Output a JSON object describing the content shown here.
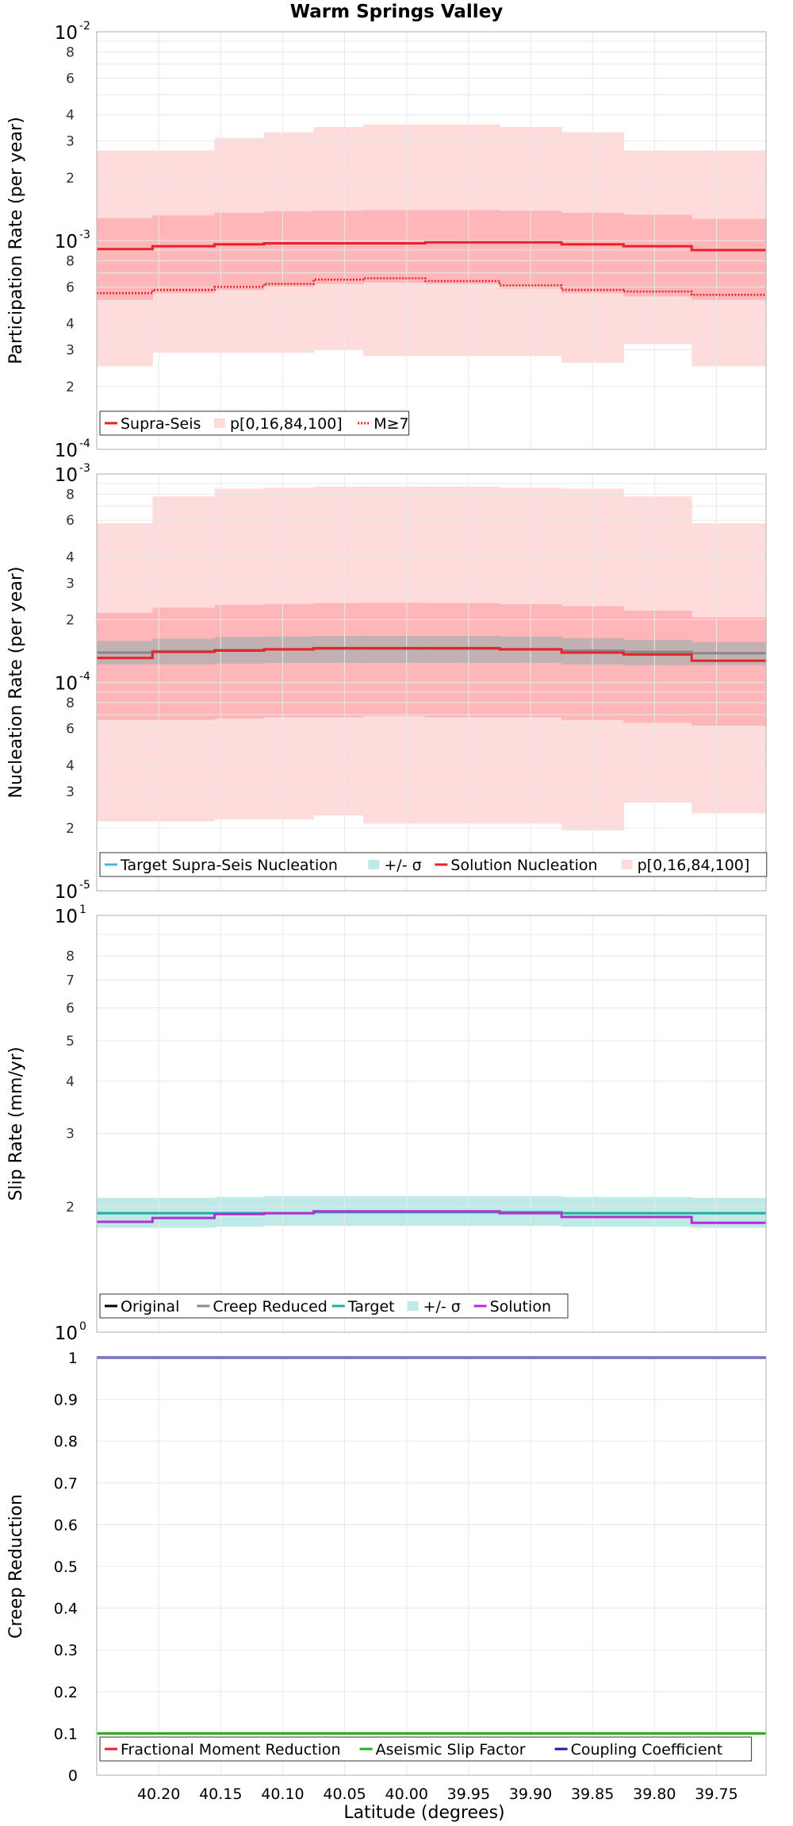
{
  "figure_title": "Warm Springs Valley",
  "x_axis": {
    "label": "Latitude (degrees)",
    "xlim": [
      40.25,
      39.71
    ],
    "ticks": [
      40.2,
      40.15,
      40.1,
      40.05,
      40.0,
      39.95,
      39.9,
      39.85,
      39.8,
      39.75
    ],
    "tick_labels": [
      "40.20",
      "40.15",
      "40.10",
      "40.05",
      "40.00",
      "39.95",
      "39.90",
      "39.85",
      "39.80",
      "39.75"
    ]
  },
  "sections": [
    40.25,
    40.205,
    40.155,
    40.115,
    40.075,
    40.035,
    39.985,
    39.925,
    39.875,
    39.825,
    39.77,
    39.71
  ],
  "colors": {
    "red": "#e8222b",
    "pink_outer": "#ffdcdc",
    "pink_inner": "#ffb6b8",
    "grey_band": "#b7b0b0",
    "grey_line": "#888888",
    "teal_band": "#bfeae8",
    "teal_line": "#1aaea4",
    "teal_target": "#46b8d3",
    "purple": "#b62dd6",
    "green": "#22b022",
    "navy": "#1a1a9c",
    "black": "#000000",
    "grid": "#e8e8e8",
    "frame": "#bbbbbb"
  },
  "chart_data": [
    {
      "type": "line",
      "id": "participation",
      "title": "Warm Springs Valley",
      "ylabel": "Participation Rate (per year)",
      "yscale": "log",
      "ylim": [
        0.0001,
        0.01
      ],
      "y_decade_labels": [
        {
          "base": "10",
          "exp": "-4"
        },
        {
          "base": "10",
          "exp": "-3"
        },
        {
          "base": "10",
          "exp": "-2"
        }
      ],
      "y_minor_labels": [
        {
          "v": 0.0002,
          "t": "2"
        },
        {
          "v": 0.0003,
          "t": "3"
        },
        {
          "v": 0.0004,
          "t": "4"
        },
        {
          "v": 0.0006,
          "t": "6"
        },
        {
          "v": 0.0008,
          "t": "8"
        },
        {
          "v": 0.002,
          "t": "2"
        },
        {
          "v": 0.003,
          "t": "3"
        },
        {
          "v": 0.004,
          "t": "4"
        },
        {
          "v": 0.006,
          "t": "6"
        },
        {
          "v": 0.008,
          "t": "8"
        }
      ],
      "bands": [
        {
          "name": "p[0,16,84,100] outer",
          "color": "#ffdcdc",
          "lower": [
            0.00025,
            0.00029,
            0.00029,
            0.00029,
            0.0003,
            0.00028,
            0.00028,
            0.00028,
            0.00026,
            0.00032,
            0.00025
          ],
          "upper": [
            0.0027,
            0.0027,
            0.0031,
            0.0033,
            0.0035,
            0.0036,
            0.0036,
            0.0035,
            0.0033,
            0.0027,
            0.0027
          ]
        },
        {
          "name": "p[0,16,84,100] inner",
          "color": "#ffb6b8",
          "lower": [
            0.00052,
            0.00056,
            0.00058,
            0.0006,
            0.00062,
            0.00063,
            0.00062,
            0.00059,
            0.00056,
            0.00054,
            0.00052
          ],
          "upper": [
            0.00128,
            0.00132,
            0.00136,
            0.00138,
            0.00139,
            0.0014,
            0.0014,
            0.00139,
            0.00136,
            0.00133,
            0.00127
          ]
        }
      ],
      "series": [
        {
          "name": "Supra-Seis",
          "color": "#e8222b",
          "dash": "none",
          "values": [
            0.00091,
            0.00094,
            0.00096,
            0.00097,
            0.00097,
            0.00097,
            0.00098,
            0.00098,
            0.00096,
            0.00094,
            0.0009
          ]
        },
        {
          "name": "M≥7",
          "color": "#e8222b",
          "dash": "2 2",
          "values": [
            0.00056,
            0.00058,
            0.0006,
            0.00062,
            0.00065,
            0.00066,
            0.00064,
            0.00061,
            0.00058,
            0.00057,
            0.00055
          ]
        }
      ],
      "legend": [
        {
          "label": "Supra-Seis",
          "kind": "line",
          "color": "#e8222b"
        },
        {
          "label": "p[0,16,84,100]",
          "kind": "box",
          "color": "#ffdcdc"
        },
        {
          "label": "M≥7",
          "kind": "dotted",
          "color": "#e8222b"
        }
      ]
    },
    {
      "type": "line",
      "id": "nucleation",
      "ylabel": "Nucleation Rate (per year)",
      "yscale": "log",
      "ylim": [
        1e-05,
        0.001
      ],
      "y_decade_labels": [
        {
          "base": "10",
          "exp": "-5"
        },
        {
          "base": "10",
          "exp": "-4"
        },
        {
          "base": "10",
          "exp": "-3"
        }
      ],
      "y_minor_labels": [
        {
          "v": 2e-05,
          "t": "2"
        },
        {
          "v": 3e-05,
          "t": "3"
        },
        {
          "v": 4e-05,
          "t": "4"
        },
        {
          "v": 6e-05,
          "t": "6"
        },
        {
          "v": 8e-05,
          "t": "8"
        },
        {
          "v": 0.0002,
          "t": "2"
        },
        {
          "v": 0.0003,
          "t": "3"
        },
        {
          "v": 0.0004,
          "t": "4"
        },
        {
          "v": 0.0006,
          "t": "6"
        },
        {
          "v": 0.0008,
          "t": "8"
        }
      ],
      "bands": [
        {
          "name": "p[0,16,84,100] outer",
          "color": "#ffdcdc",
          "lower": [
            2.15e-05,
            2.15e-05,
            2.2e-05,
            2.2e-05,
            2.3e-05,
            2.1e-05,
            2.1e-05,
            2.1e-05,
            1.95e-05,
            2.65e-05,
            2.35e-05
          ],
          "upper": [
            0.00058,
            0.00078,
            0.00085,
            0.00086,
            0.00087,
            0.00087,
            0.00087,
            0.00086,
            0.00085,
            0.00078,
            0.00058
          ]
        },
        {
          "name": "p[0,16,84,100] inner",
          "color": "#ffb6b8",
          "lower": [
            6.6e-05,
            6.6e-05,
            6.7e-05,
            6.8e-05,
            6.8e-05,
            6.9e-05,
            6.8e-05,
            6.8e-05,
            6.6e-05,
            6.4e-05,
            6.2e-05
          ],
          "upper": [
            0.000215,
            0.000228,
            0.000235,
            0.000238,
            0.00024,
            0.000241,
            0.00024,
            0.000237,
            0.000232,
            0.000221,
            0.000205
          ]
        },
        {
          "name": "+/- σ",
          "color": "#b7b0b0",
          "lower": [
            0.000122,
            0.000122,
            0.000123,
            0.000124,
            0.000124,
            0.000124,
            0.000124,
            0.000124,
            0.000122,
            0.000121,
            0.000121
          ],
          "upper": [
            0.000158,
            0.000162,
            0.000165,
            0.000166,
            0.000167,
            0.000167,
            0.000167,
            0.000166,
            0.000163,
            0.00016,
            0.000156
          ]
        }
      ],
      "series": [
        {
          "name": "Target Supra-Seis Nucleation",
          "color": "#888888",
          "dash": "none",
          "values": [
            0.000139,
            0.000141,
            0.000143,
            0.000144,
            0.000145,
            0.000145,
            0.000145,
            0.000144,
            0.000142,
            0.00014,
            0.000138
          ]
        },
        {
          "name": "Solution Nucleation",
          "color": "#e8222b",
          "dash": "none",
          "values": [
            0.000131,
            0.00014,
            0.000142,
            0.000144,
            0.000146,
            0.000146,
            0.000146,
            0.000144,
            0.000139,
            0.000136,
            0.000127
          ]
        }
      ],
      "legend": [
        {
          "label": "Target Supra-Seis Nucleation",
          "kind": "line",
          "color": "#46b8d3"
        },
        {
          "label": "+/- σ",
          "kind": "box",
          "color": "#bfeae8"
        },
        {
          "label": "Solution Nucleation",
          "kind": "line",
          "color": "#e8222b"
        },
        {
          "label": "p[0,16,84,100]",
          "kind": "box",
          "color": "#ffdcdc"
        }
      ]
    },
    {
      "type": "line",
      "id": "slip",
      "ylabel": "Slip Rate (mm/yr)",
      "yscale": "log",
      "ylim": [
        1,
        10
      ],
      "y_decade_labels": [
        {
          "base": "10",
          "exp": "0"
        },
        {
          "base": "10",
          "exp": "1"
        }
      ],
      "y_minor_labels": [
        {
          "v": 2,
          "t": "2"
        },
        {
          "v": 3,
          "t": "3"
        },
        {
          "v": 4,
          "t": "4"
        },
        {
          "v": 5,
          "t": "5"
        },
        {
          "v": 6,
          "t": "6"
        },
        {
          "v": 7,
          "t": "7"
        },
        {
          "v": 8,
          "t": "8"
        }
      ],
      "bands": [
        {
          "name": "+/- σ",
          "color": "#bfeae8",
          "lower": [
            1.78,
            1.78,
            1.79,
            1.8,
            1.8,
            1.8,
            1.8,
            1.8,
            1.79,
            1.79,
            1.78
          ],
          "upper": [
            2.1,
            2.1,
            2.11,
            2.12,
            2.12,
            2.12,
            2.12,
            2.12,
            2.11,
            2.11,
            2.1
          ]
        }
      ],
      "series": [
        {
          "name": "Target",
          "color": "#1aaea4",
          "dash": "none",
          "values": [
            1.93,
            1.93,
            1.93,
            1.93,
            1.94,
            1.94,
            1.94,
            1.94,
            1.93,
            1.93,
            1.93
          ]
        },
        {
          "name": "Solution",
          "color": "#b62dd6",
          "dash": "none",
          "values": [
            1.84,
            1.88,
            1.92,
            1.93,
            1.95,
            1.95,
            1.95,
            1.93,
            1.89,
            1.89,
            1.83
          ]
        }
      ],
      "legend": [
        {
          "label": "Original",
          "kind": "line",
          "color": "#000000"
        },
        {
          "label": "Creep Reduced",
          "kind": "line",
          "color": "#888888"
        },
        {
          "label": "Target",
          "kind": "line",
          "color": "#1aaea4"
        },
        {
          "label": "+/- σ",
          "kind": "box",
          "color": "#bfeae8"
        },
        {
          "label": "Solution",
          "kind": "line",
          "color": "#b62dd6"
        }
      ]
    },
    {
      "type": "line",
      "id": "creep",
      "ylabel": "Creep Reduction",
      "yscale": "linear",
      "ylim": [
        0,
        1
      ],
      "y_ticks": [
        0,
        0.1,
        0.2,
        0.3,
        0.4,
        0.5,
        0.6,
        0.7,
        0.8,
        0.9,
        1
      ],
      "y_tick_labels": [
        "0",
        "0.1",
        "0.2",
        "0.3",
        "0.4",
        "0.5",
        "0.6",
        "0.7",
        "0.8",
        "0.9",
        "1"
      ],
      "bands": [],
      "series": [
        {
          "name": "Fractional Moment Reduction",
          "color": "#e8222b",
          "dash": "none",
          "values": [
            0.1,
            0.1,
            0.1,
            0.1,
            0.1,
            0.1,
            0.1,
            0.1,
            0.1,
            0.1,
            0.1
          ]
        },
        {
          "name": "Aseismic Slip Factor",
          "color": "#22b022",
          "dash": "none",
          "values": [
            0.1,
            0.1,
            0.1,
            0.1,
            0.1,
            0.1,
            0.1,
            0.1,
            0.1,
            0.1,
            0.1
          ]
        },
        {
          "name": "Coupling Coefficient",
          "color": "#1a1a9c",
          "dash": "none",
          "values": [
            1,
            1,
            1,
            1,
            1,
            1,
            1,
            1,
            1,
            1,
            1
          ]
        }
      ],
      "legend": [
        {
          "label": "Fractional Moment Reduction",
          "kind": "line",
          "color": "#e8222b"
        },
        {
          "label": "Aseismic Slip Factor",
          "kind": "line",
          "color": "#22b022"
        },
        {
          "label": "Coupling Coefficient",
          "kind": "line",
          "color": "#1a1a9c"
        }
      ]
    }
  ]
}
